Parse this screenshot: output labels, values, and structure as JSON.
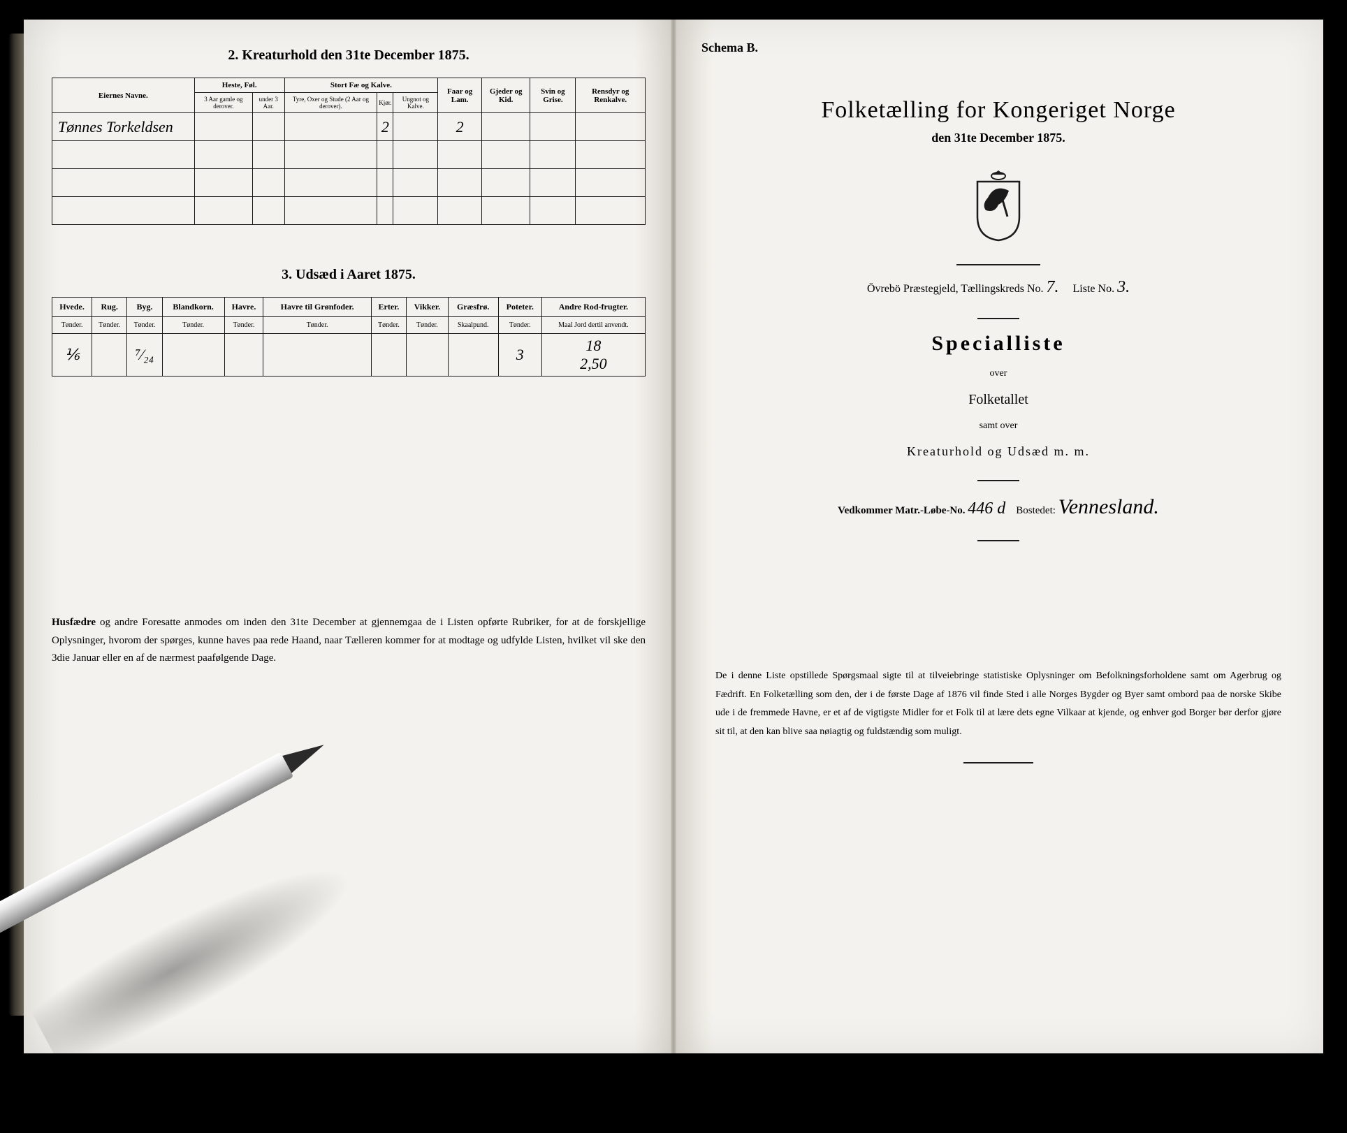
{
  "left": {
    "kreatur": {
      "title": "2.  Kreaturhold den 31te December 1875.",
      "headers": {
        "eier": "Eiernes Navne.",
        "heste": "Heste, Føl.",
        "heste_sub1": "3 Aar gamle og derover.",
        "heste_sub2": "under 3 Aar.",
        "stort": "Stort Fæ og Kalve.",
        "stort_sub1": "Tyre, Oxer og Stude (2 Aar og derover).",
        "stort_sub2": "Kjør.",
        "stort_sub3": "Ungnot og Kalve.",
        "faar": "Faar og Lam.",
        "gjeder": "Gjeder og Kid.",
        "svin": "Svin og Grise.",
        "rensdyr": "Rensdyr og Renkalve."
      },
      "row": {
        "name": "Tønnes Torkeldsen",
        "kjor": "2",
        "ungnot": "",
        "faar": "2"
      }
    },
    "udsaed": {
      "title": "3.  Udsæd i Aaret 1875.",
      "cols": [
        "Hvede.",
        "Rug.",
        "Byg.",
        "Blandkorn.",
        "Havre.",
        "Havre til Grønfoder.",
        "Erter.",
        "Vikker.",
        "Græsfrø.",
        "Poteter.",
        "Andre Rod-frugter."
      ],
      "units": [
        "Tønder.",
        "Tønder.",
        "Tønder.",
        "Tønder.",
        "Tønder.",
        "Tønder.",
        "Tønder.",
        "Tønder.",
        "Skaalpund.",
        "Tønder.",
        "Maal Jord dertil anvendt."
      ],
      "row1": [
        "⅙",
        "",
        "⁷⁄₂₄",
        "",
        "",
        "",
        "",
        "",
        "",
        "3",
        "18"
      ],
      "row2": [
        "",
        "",
        "",
        "",
        "",
        "",
        "",
        "",
        "",
        "",
        "2,50"
      ]
    },
    "footnote": {
      "bold": "Husfædre",
      "text": " og andre Foresatte anmodes om inden den 31te December at gjennemgaa de i Listen opførte Rubriker, for at de forskjellige Oplysninger, hvorom der spørges, kunne haves paa rede Haand, naar Tælleren kommer for at modtage og udfylde Listen, hvilket vil ske den 3die Januar eller en af de nærmest paafølgende Dage."
    }
  },
  "right": {
    "schema": "Schema B.",
    "title": "Folketælling for Kongeriget Norge",
    "subtitle": "den 31te December 1875.",
    "parish": {
      "prefix": "Övrebö  Præstegjeld,  Tællingskreds No.",
      "kreds": "7.",
      "liste_lbl": "Liste No.",
      "liste": "3."
    },
    "special": "Specialliste",
    "over": "over",
    "folketallet": "Folketallet",
    "samt": "samt over",
    "kreatur": "Kreaturhold  og  Udsæd  m. m.",
    "vedk": {
      "lbl1": "Vedkommer Matr.-Løbe-No.",
      "no": "446 d",
      "lbl2": "Bostedet:",
      "sted": "Vennesland."
    },
    "foot": "De i denne Liste opstillede Spørgsmaal sigte til at tilveiebringe statistiske Oplysninger om Befolkningsforholdene samt om Agerbrug og Fædrift.  En Folketælling som den, der i de første Dage af 1876 vil finde Sted i alle Norges Bygder og Byer samt ombord paa de norske Skibe ude i de fremmede Havne, er et af de vigtigste Midler for et Folk til at lære dets egne Vilkaar at kjende, og enhver god Borger bør derfor gjøre sit til, at den kan blive saa nøiagtig og fuldstændig som muligt."
  }
}
